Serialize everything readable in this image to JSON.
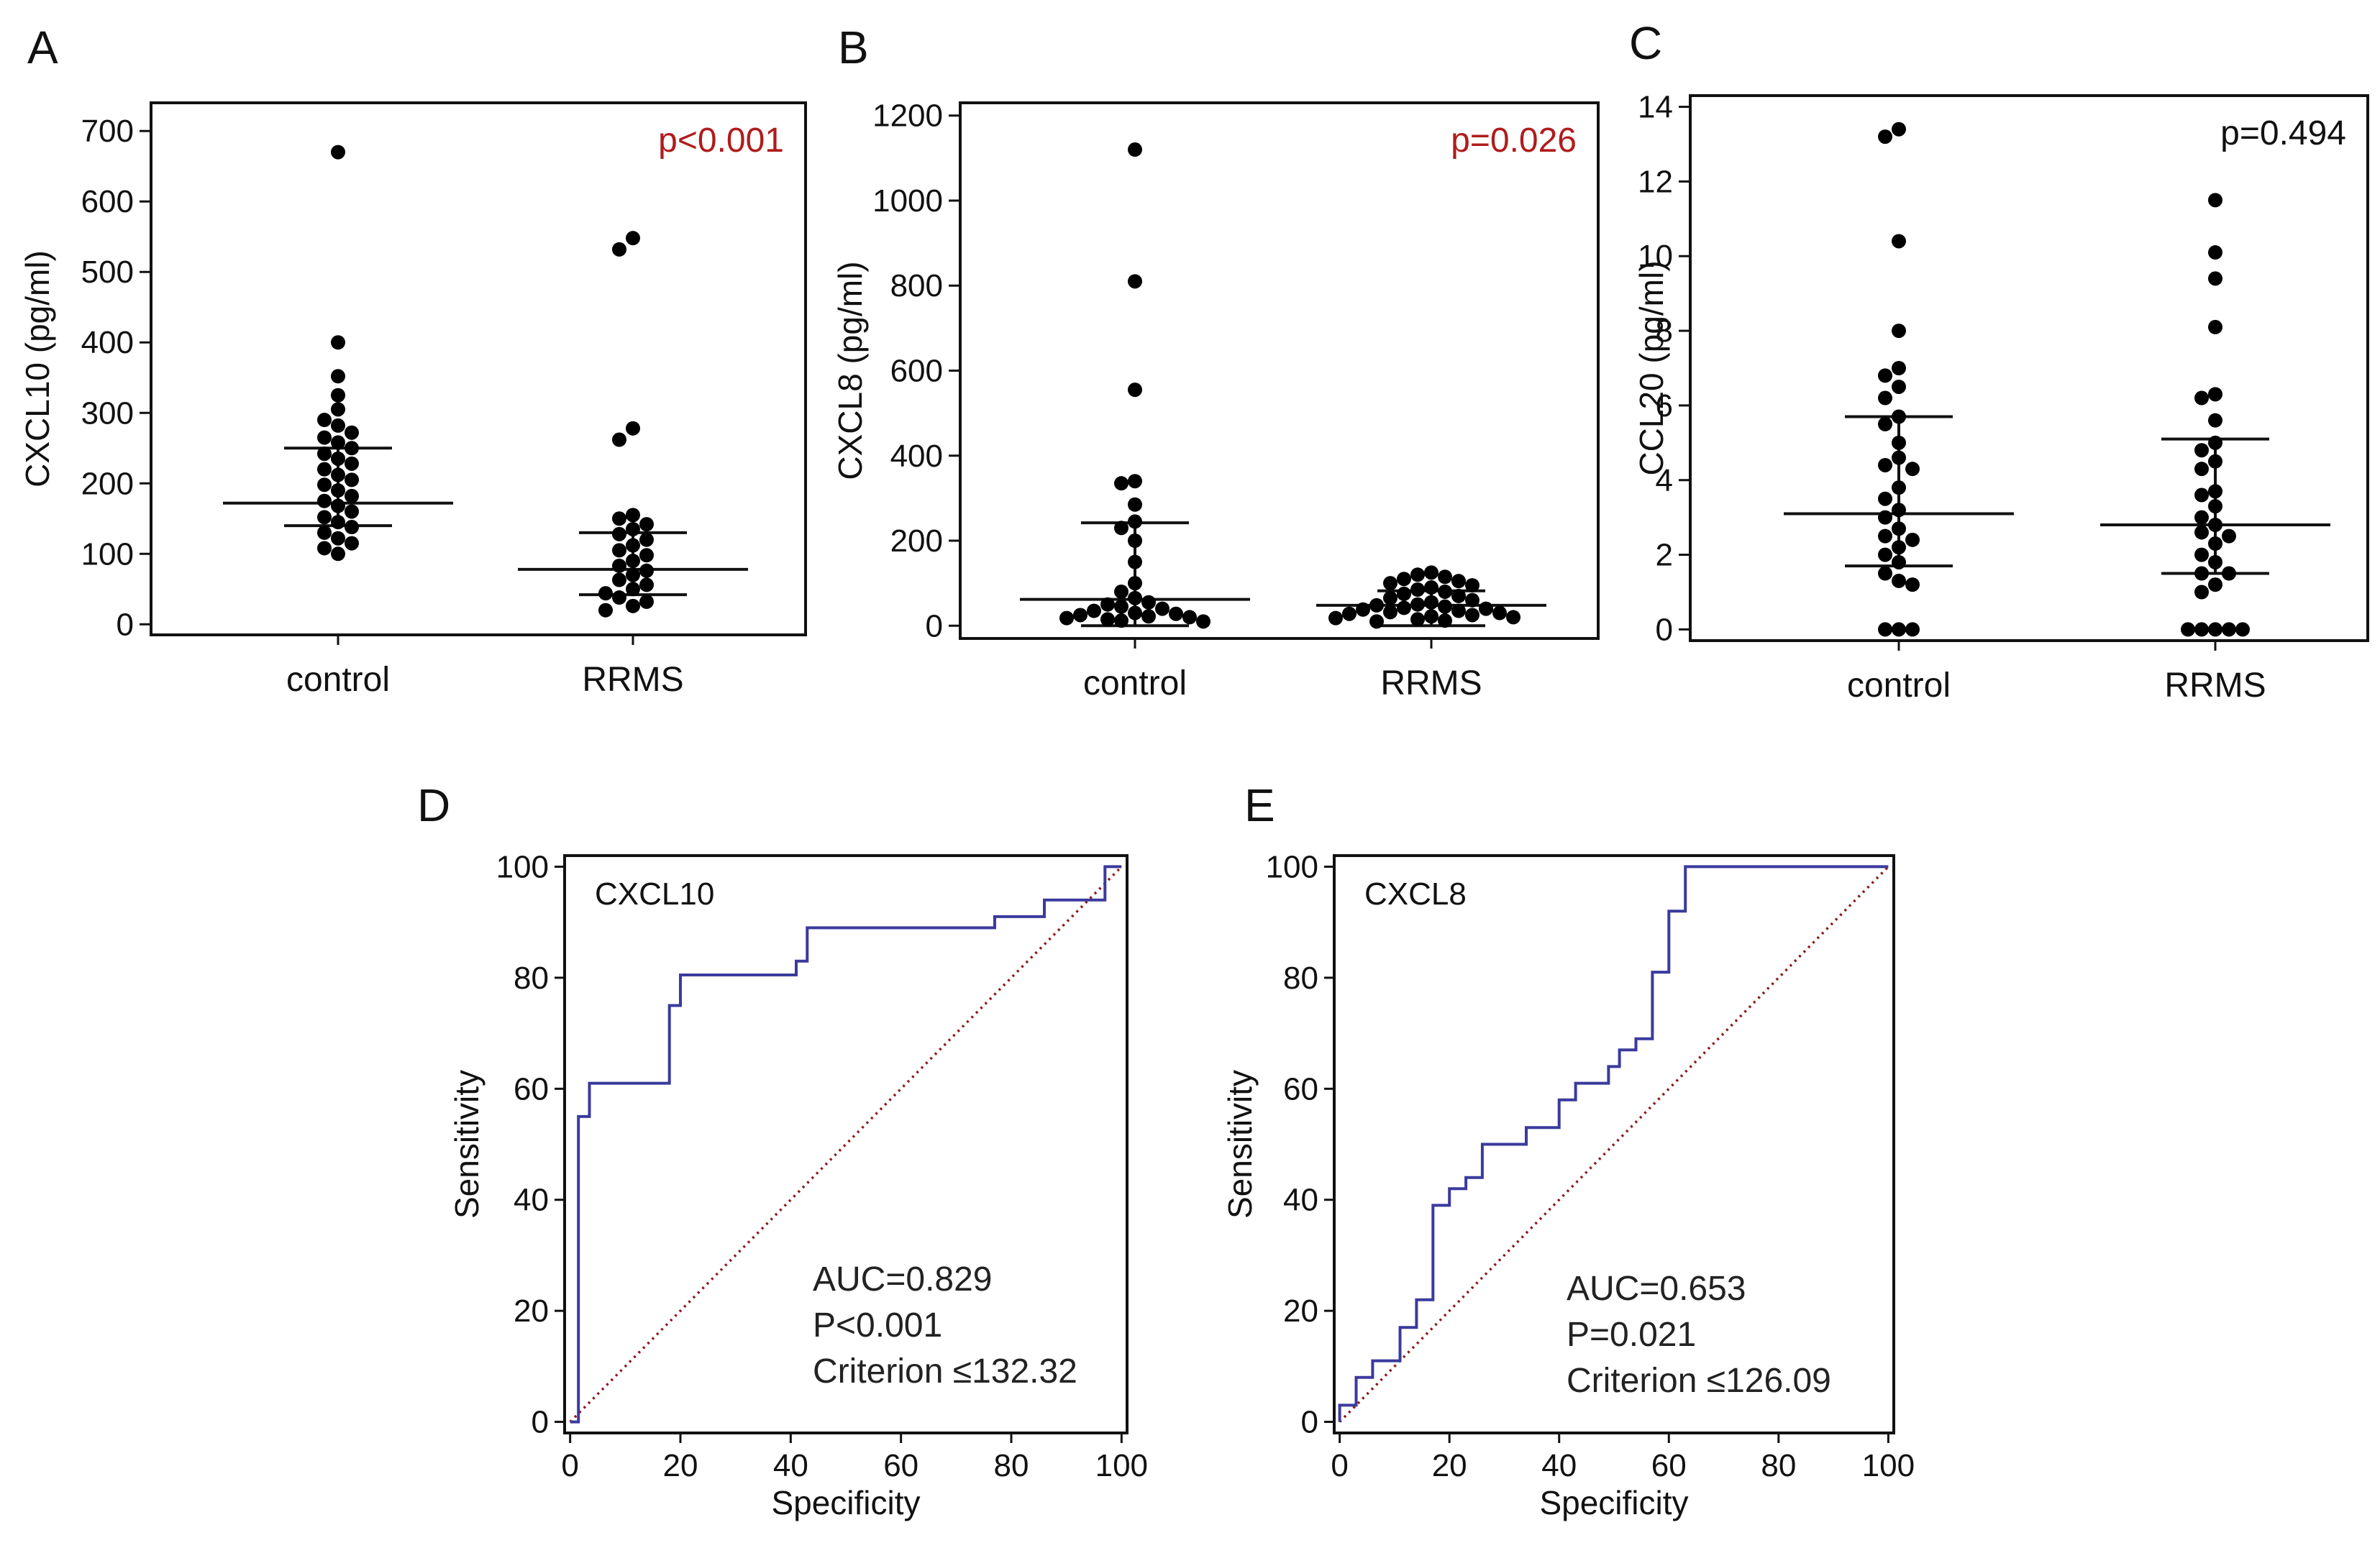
{
  "colors": {
    "significant_p": "#b01c1c",
    "nonsignificant_p": "#111111",
    "roc_curve": "#3a3a9e",
    "reference_line": "#8b1a1a",
    "points": "#000000"
  },
  "chart_data": [
    {
      "panel": "A",
      "type": "scatter",
      "title": "",
      "xlabel": "",
      "ylabel": "CXCL10 (pg/ml)",
      "ylim": [
        -15,
        740
      ],
      "yticks": [
        0,
        100,
        200,
        300,
        400,
        500,
        600,
        700
      ],
      "categories": [
        "control",
        "RRMS"
      ],
      "p_value": "p<0.001",
      "significant": true,
      "groups": [
        {
          "name": "control",
          "median": 172,
          "q1": 140,
          "q3": 250,
          "values": [
            670,
            400,
            352,
            325,
            305,
            290,
            282,
            272,
            265,
            258,
            250,
            242,
            235,
            228,
            220,
            212,
            205,
            198,
            190,
            182,
            175,
            168,
            160,
            152,
            145,
            138,
            130,
            122,
            115,
            108,
            100
          ]
        },
        {
          "name": "RRMS",
          "median": 78,
          "q1": 42,
          "q3": 130,
          "values": [
            548,
            532,
            278,
            262,
            155,
            150,
            142,
            135,
            128,
            120,
            112,
            105,
            98,
            90,
            83,
            76,
            70,
            63,
            56,
            50,
            44,
            38,
            32,
            26,
            20
          ]
        }
      ]
    },
    {
      "panel": "B",
      "type": "scatter",
      "title": "",
      "xlabel": "",
      "ylabel": "CXCL8 (pg/ml)",
      "ylim": [
        -30,
        1230
      ],
      "yticks": [
        0,
        200,
        400,
        600,
        800,
        1000,
        1200
      ],
      "categories": [
        "control",
        "RRMS"
      ],
      "p_value": "p=0.026",
      "significant": true,
      "groups": [
        {
          "name": "control",
          "median": 62,
          "q1": 0,
          "q3": 242,
          "values": [
            1120,
            810,
            555,
            340,
            335,
            285,
            245,
            230,
            200,
            150,
            100,
            80,
            65,
            55,
            50,
            45,
            40,
            35,
            30,
            28,
            25,
            22,
            20,
            18,
            15,
            12,
            10
          ]
        },
        {
          "name": "RRMS",
          "median": 48,
          "q1": 0,
          "q3": 82,
          "values": [
            125,
            120,
            115,
            110,
            105,
            100,
            95,
            90,
            85,
            80,
            75,
            70,
            65,
            60,
            55,
            50,
            48,
            45,
            42,
            40,
            38,
            35,
            32,
            30,
            28,
            25,
            22,
            20,
            18,
            15,
            12,
            10
          ]
        }
      ]
    },
    {
      "panel": "C",
      "type": "scatter",
      "title": "",
      "xlabel": "",
      "ylabel": "CCL20 (pg/ml)",
      "ylim": [
        -0.3,
        14.3
      ],
      "yticks": [
        0,
        2,
        4,
        6,
        8,
        10,
        12,
        14
      ],
      "categories": [
        "control",
        "RRMS"
      ],
      "p_value": "p=0.494",
      "significant": false,
      "groups": [
        {
          "name": "control",
          "median": 3.1,
          "q1": 1.7,
          "q3": 5.7,
          "values": [
            13.4,
            13.2,
            10.4,
            8.0,
            7.0,
            6.8,
            6.5,
            6.2,
            5.7,
            5.5,
            5.0,
            4.6,
            4.4,
            4.3,
            3.8,
            3.5,
            3.2,
            3.0,
            2.7,
            2.5,
            2.4,
            2.2,
            2.0,
            1.8,
            1.5,
            1.3,
            1.2,
            0,
            0,
            0
          ]
        },
        {
          "name": "RRMS",
          "median": 2.8,
          "q1": 1.5,
          "q3": 5.1,
          "values": [
            11.5,
            10.1,
            9.4,
            8.1,
            6.3,
            6.2,
            5.6,
            5.0,
            4.8,
            4.5,
            4.3,
            3.7,
            3.6,
            3.3,
            3.0,
            2.8,
            2.6,
            2.5,
            2.3,
            2.0,
            1.8,
            1.5,
            1.5,
            1.2,
            1.0,
            0,
            0,
            0,
            0,
            0
          ]
        }
      ]
    },
    {
      "panel": "D",
      "type": "line",
      "title": "",
      "series_label": "CXCL10",
      "xlabel": "Specificity",
      "ylabel": "Sensitivity",
      "xlim": [
        -1,
        101
      ],
      "ylim": [
        -2,
        102
      ],
      "xticks": [
        0,
        20,
        40,
        60,
        80,
        100
      ],
      "yticks": [
        0,
        20,
        40,
        60,
        80,
        100
      ],
      "stats": [
        "AUC=0.829",
        "P<0.001",
        "Criterion ≤132.32"
      ],
      "roc": {
        "x": [
          0,
          1.5,
          1.5,
          3.5,
          3.5,
          18,
          18,
          20,
          20,
          41,
          41,
          43,
          43,
          77,
          77,
          86,
          86,
          97,
          97,
          100,
          100
        ],
        "y": [
          0,
          0,
          55,
          55,
          61,
          61,
          75,
          75,
          80.5,
          80.5,
          83,
          83,
          89,
          89,
          91,
          91,
          94,
          94,
          100,
          100,
          100
        ]
      },
      "reference": {
        "x": [
          0,
          100
        ],
        "y": [
          0,
          100
        ]
      }
    },
    {
      "panel": "E",
      "type": "line",
      "title": "",
      "series_label": "CXCL8",
      "xlabel": "Specificity",
      "ylabel": "Sensitivity",
      "xlim": [
        -1,
        101
      ],
      "ylim": [
        -2,
        102
      ],
      "xticks": [
        0,
        20,
        40,
        60,
        80,
        100
      ],
      "yticks": [
        0,
        20,
        40,
        60,
        80,
        100
      ],
      "stats": [
        "AUC=0.653",
        "P=0.021",
        "Criterion ≤126.09"
      ],
      "roc": {
        "x": [
          0,
          0,
          3,
          3,
          6,
          6,
          11,
          11,
          14,
          14,
          17,
          17,
          20,
          20,
          23,
          23,
          26,
          26,
          34,
          34,
          40,
          40,
          43,
          43,
          49,
          49,
          51,
          51,
          54,
          54,
          57,
          57,
          60,
          60,
          63,
          63,
          66,
          66,
          100
        ],
        "y": [
          0,
          3,
          3,
          8,
          8,
          11,
          11,
          17,
          17,
          22,
          22,
          39,
          39,
          42,
          42,
          44,
          44,
          50,
          50,
          53,
          53,
          58,
          58,
          61,
          61,
          64,
          64,
          67,
          67,
          69,
          69,
          81,
          81,
          92,
          92,
          100,
          100,
          100,
          100
        ]
      },
      "reference": {
        "x": [
          0,
          100
        ],
        "y": [
          0,
          100
        ]
      }
    }
  ]
}
